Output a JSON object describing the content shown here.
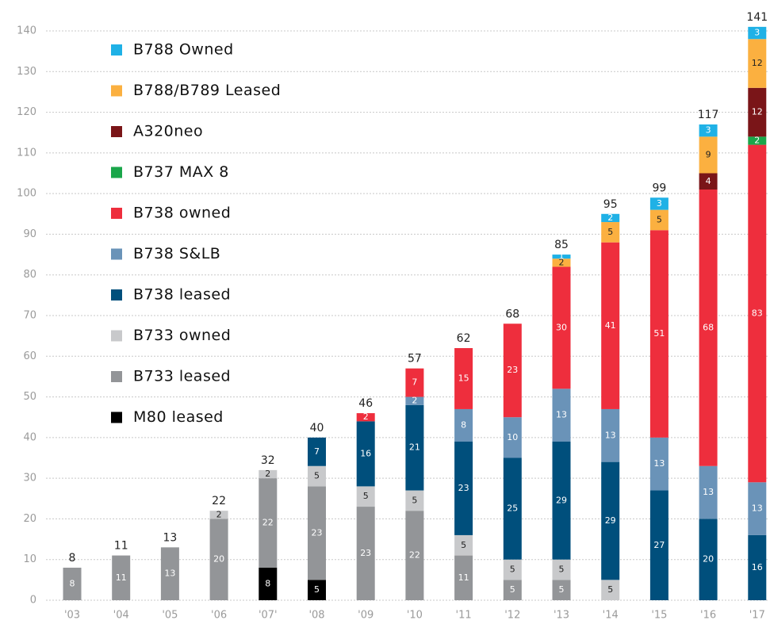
{
  "chart_data": {
    "type": "stacked_bar",
    "categories": [
      "'03",
      "'04",
      "'05",
      "'06",
      "'07'",
      "'08",
      "'09",
      "'10",
      "'11",
      "'12",
      "'13",
      "'14",
      "'15",
      "'16",
      "'17"
    ],
    "totals": [
      8,
      11,
      13,
      22,
      32,
      40,
      46,
      57,
      62,
      68,
      85,
      95,
      99,
      117,
      141
    ],
    "series": [
      {
        "name": "M80 leased",
        "color": "#000000",
        "values": [
          null,
          null,
          null,
          null,
          8,
          5,
          null,
          null,
          null,
          null,
          null,
          null,
          null,
          null,
          null
        ]
      },
      {
        "name": "B733 leased",
        "color": "#939598",
        "values": [
          8,
          11,
          13,
          20,
          22,
          23,
          23,
          22,
          11,
          5,
          5,
          null,
          null,
          null,
          null
        ]
      },
      {
        "name": "B733 owned",
        "color": "#c8c9cb",
        "values": [
          null,
          null,
          null,
          2,
          2,
          5,
          5,
          5,
          5,
          5,
          5,
          5,
          null,
          null,
          null
        ]
      },
      {
        "name": "B738 leased",
        "color": "#004f7c",
        "values": [
          null,
          null,
          null,
          null,
          null,
          7,
          16,
          21,
          23,
          25,
          29,
          29,
          27,
          20,
          16
        ]
      },
      {
        "name": "B738 S&LB",
        "color": "#6a93b8",
        "values": [
          null,
          null,
          null,
          null,
          null,
          null,
          null,
          2,
          8,
          10,
          13,
          13,
          13,
          13,
          13
        ]
      },
      {
        "name": "B738 owned",
        "color": "#ee2e3d",
        "values": [
          null,
          null,
          null,
          null,
          null,
          null,
          2,
          7,
          15,
          23,
          30,
          41,
          51,
          68,
          83
        ]
      },
      {
        "name": "B737 MAX 8",
        "color": "#1aa64a",
        "values": [
          null,
          null,
          null,
          null,
          null,
          null,
          null,
          null,
          null,
          null,
          null,
          null,
          null,
          null,
          2
        ]
      },
      {
        "name": "A320neo",
        "color": "#7a1518",
        "values": [
          null,
          null,
          null,
          null,
          null,
          null,
          null,
          null,
          null,
          null,
          null,
          null,
          null,
          4,
          12
        ]
      },
      {
        "name": "B788/B789 Leased",
        "color": "#fbb040",
        "values": [
          null,
          null,
          null,
          null,
          null,
          null,
          null,
          null,
          null,
          null,
          2,
          5,
          5,
          9,
          12
        ]
      },
      {
        "name": "B788 Owned",
        "color": "#1fb1e6",
        "values": [
          null,
          null,
          null,
          null,
          null,
          null,
          null,
          null,
          null,
          null,
          1,
          2,
          3,
          3,
          3
        ]
      }
    ],
    "ylim": [
      0,
      140
    ],
    "yticks": [
      0,
      10,
      20,
      30,
      40,
      50,
      60,
      70,
      80,
      90,
      100,
      110,
      120,
      130,
      140
    ],
    "grid": true
  }
}
